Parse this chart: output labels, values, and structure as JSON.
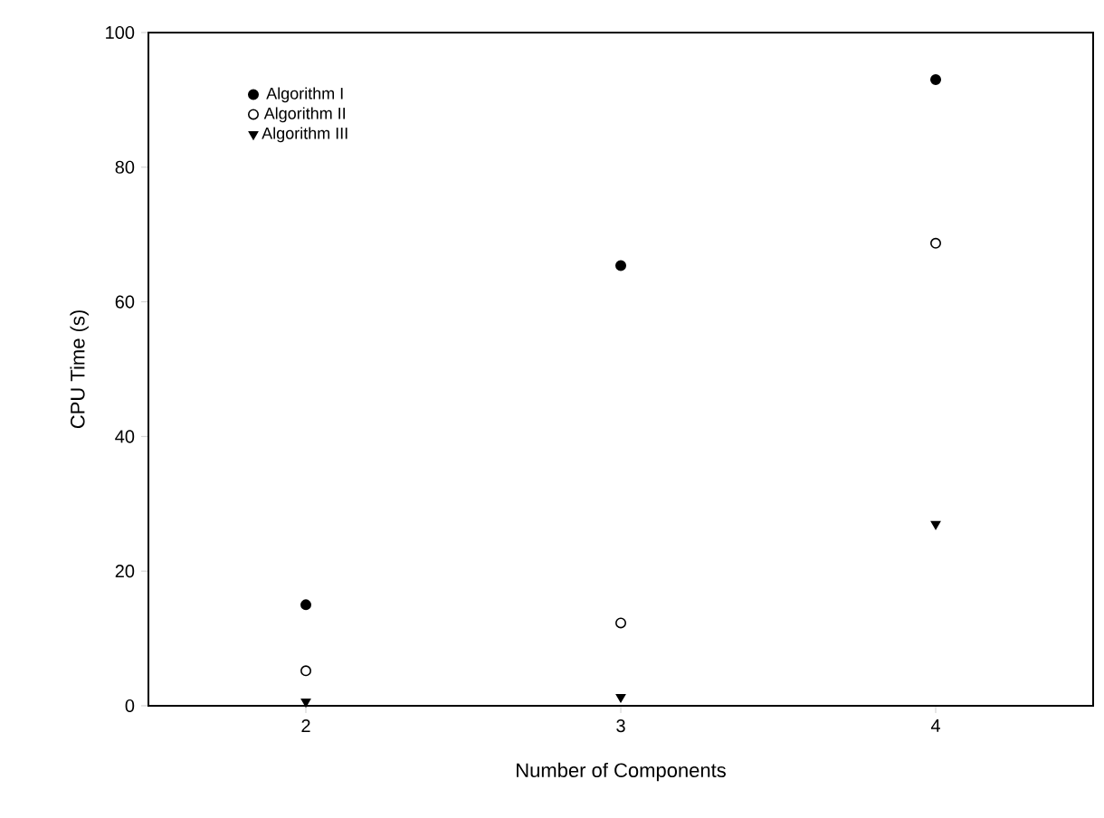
{
  "chart_data": {
    "type": "scatter",
    "xlabel": "Number of Components",
    "ylabel": "CPU Time (s)",
    "x": [
      2,
      3,
      4
    ],
    "series": [
      {
        "name": "Algorithm I",
        "color": "#000000",
        "marker": "circle",
        "values": [
          15,
          65.4,
          93
        ]
      },
      {
        "name": "Algorithm II",
        "color": "#000000",
        "marker": "circle_open",
        "values": [
          5.2,
          12.3,
          68.7
        ]
      },
      {
        "name": "Algorithm III",
        "color": "#000000",
        "marker": "triangle_down",
        "values": [
          0.6,
          1.3,
          27
        ]
      }
    ],
    "xlim": [
      1.5,
      4.5
    ],
    "ylim": [
      0,
      100
    ],
    "xticks": [
      2,
      3,
      4
    ],
    "yticks": [
      0,
      20,
      40,
      60,
      80,
      100
    ],
    "grid": false,
    "legend": "top left"
  }
}
